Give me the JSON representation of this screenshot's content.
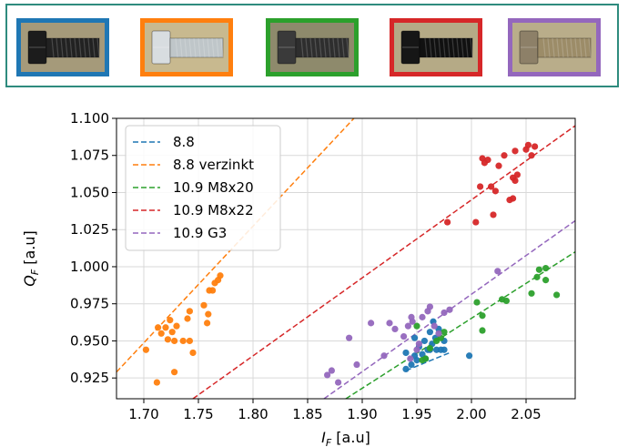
{
  "bolt_photos": [
    {
      "frame_color": "#1f77b4",
      "bolt_color": "#1c1c1c",
      "thread_color": "#222222",
      "bg_color": "#a59a7a"
    },
    {
      "frame_color": "#ff7f0e",
      "bolt_color": "#d8dde0",
      "thread_color": "#bfc6c9",
      "bg_color": "#c8b98f"
    },
    {
      "frame_color": "#2ca02c",
      "bolt_color": "#3a3a3a",
      "thread_color": "#2e2e2e",
      "bg_color": "#8e8a6c"
    },
    {
      "frame_color": "#d62728",
      "bolt_color": "#161616",
      "thread_color": "#111111",
      "bg_color": "#b5aa86"
    },
    {
      "frame_color": "#9467bd",
      "bolt_color": "#8d8068",
      "thread_color": "#9c8c68",
      "bg_color": "#b9ad8a"
    }
  ],
  "chart_data": {
    "type": "scatter",
    "xlabel": "I_F [a.u]",
    "xlabel_main": "I",
    "xlabel_sub": "F",
    "xlabel_unit": " [a.u]",
    "ylabel": "Q_F [a.u]",
    "ylabel_main": "Q",
    "ylabel_sub": "F",
    "ylabel_unit": " [a.u]",
    "xlim": [
      1.675,
      2.095
    ],
    "ylim": [
      0.911,
      1.1
    ],
    "x_ticks": [
      "1.70",
      "1.75",
      "1.80",
      "1.85",
      "1.90",
      "1.95",
      "2.00",
      "2.05"
    ],
    "x_tick_values": [
      1.7,
      1.75,
      1.8,
      1.85,
      1.9,
      1.95,
      2.0,
      2.05
    ],
    "y_ticks": [
      "0.925",
      "0.950",
      "0.975",
      "1.000",
      "1.025",
      "1.050",
      "1.075",
      "1.100"
    ],
    "y_tick_values": [
      0.925,
      0.95,
      0.975,
      1.0,
      1.025,
      1.05,
      1.075,
      1.1
    ],
    "grid": true,
    "legend_position": "top-left",
    "series": [
      {
        "name": "8.8",
        "color": "#1f77b4",
        "fit_line": [
          [
            1.94,
            0.93
          ],
          [
            1.98,
            0.942
          ]
        ],
        "points": [
          [
            1.94,
            0.931
          ],
          [
            1.94,
            0.942
          ],
          [
            1.945,
            0.934
          ],
          [
            1.948,
            0.952
          ],
          [
            1.95,
            0.937
          ],
          [
            1.952,
            0.946
          ],
          [
            1.955,
            0.941
          ],
          [
            1.957,
            0.95
          ],
          [
            1.96,
            0.944
          ],
          [
            1.962,
            0.956
          ],
          [
            1.964,
            0.948
          ],
          [
            1.965,
            0.963
          ],
          [
            1.967,
            0.952
          ],
          [
            1.968,
            0.944
          ],
          [
            1.97,
            0.958
          ],
          [
            1.972,
            0.944
          ],
          [
            1.975,
            0.95
          ],
          [
            1.958,
            0.938
          ],
          [
            1.948,
            0.94
          ],
          [
            1.998,
            0.94
          ],
          [
            1.962,
            0.944
          ],
          [
            1.975,
            0.944
          ]
        ]
      },
      {
        "name": "8.8 verzinkt",
        "color": "#ff7f0e",
        "fit_line": [
          [
            1.675,
            0.929
          ],
          [
            1.9,
            1.106
          ]
        ],
        "points": [
          [
            1.702,
            0.944
          ],
          [
            1.712,
            0.922
          ],
          [
            1.713,
            0.959
          ],
          [
            1.716,
            0.955
          ],
          [
            1.72,
            0.959
          ],
          [
            1.722,
            0.951
          ],
          [
            1.724,
            0.964
          ],
          [
            1.726,
            0.956
          ],
          [
            1.728,
            0.95
          ],
          [
            1.728,
            0.929
          ],
          [
            1.736,
            0.95
          ],
          [
            1.74,
            0.965
          ],
          [
            1.742,
            0.97
          ],
          [
            1.742,
            0.95
          ],
          [
            1.745,
            0.942
          ],
          [
            1.755,
            0.974
          ],
          [
            1.758,
            0.962
          ],
          [
            1.759,
            0.968
          ],
          [
            1.76,
            0.984
          ],
          [
            1.763,
            0.984
          ],
          [
            1.765,
            0.989
          ],
          [
            1.768,
            0.991
          ],
          [
            1.77,
            0.994
          ],
          [
            1.73,
            0.96
          ]
        ]
      },
      {
        "name": "10.9 M8x20",
        "color": "#2ca02c",
        "fit_line": [
          [
            1.885,
            0.911
          ],
          [
            2.095,
            1.01
          ]
        ],
        "points": [
          [
            1.955,
            0.937
          ],
          [
            1.958,
            0.938
          ],
          [
            1.962,
            0.945
          ],
          [
            1.968,
            0.95
          ],
          [
            1.972,
            0.952
          ],
          [
            1.975,
            0.956
          ],
          [
            2.005,
            0.976
          ],
          [
            2.01,
            0.957
          ],
          [
            2.01,
            0.967
          ],
          [
            2.028,
            0.978
          ],
          [
            2.032,
            0.977
          ],
          [
            2.055,
            0.982
          ],
          [
            2.06,
            0.993
          ],
          [
            2.062,
            0.998
          ],
          [
            2.068,
            0.999
          ],
          [
            2.068,
            0.991
          ],
          [
            2.078,
            0.981
          ],
          [
            1.95,
            0.96
          ]
        ]
      },
      {
        "name": "10.9 M8x22",
        "color": "#d62728",
        "fit_line": [
          [
            1.745,
            0.911
          ],
          [
            2.095,
            1.095
          ]
        ],
        "points": [
          [
            1.978,
            1.03
          ],
          [
            2.004,
            1.03
          ],
          [
            2.008,
            1.054
          ],
          [
            2.01,
            1.073
          ],
          [
            2.012,
            1.07
          ],
          [
            2.015,
            1.072
          ],
          [
            2.018,
            1.054
          ],
          [
            2.02,
            1.035
          ],
          [
            2.022,
            1.051
          ],
          [
            2.025,
            1.068
          ],
          [
            2.03,
            1.075
          ],
          [
            2.035,
            1.045
          ],
          [
            2.038,
            1.06
          ],
          [
            2.04,
            1.078
          ],
          [
            2.04,
            1.058
          ],
          [
            2.042,
            1.062
          ],
          [
            2.05,
            1.079
          ],
          [
            2.052,
            1.082
          ],
          [
            2.055,
            1.075
          ],
          [
            2.058,
            1.081
          ],
          [
            2.038,
            1.046
          ]
        ]
      },
      {
        "name": "10.9 G3",
        "color": "#9467bd",
        "fit_line": [
          [
            1.865,
            0.911
          ],
          [
            2.095,
            1.031
          ]
        ],
        "points": [
          [
            1.868,
            0.927
          ],
          [
            1.872,
            0.93
          ],
          [
            1.878,
            0.922
          ],
          [
            1.888,
            0.952
          ],
          [
            1.895,
            0.934
          ],
          [
            1.908,
            0.962
          ],
          [
            1.92,
            0.94
          ],
          [
            1.925,
            0.962
          ],
          [
            1.93,
            0.958
          ],
          [
            1.938,
            0.953
          ],
          [
            1.942,
            0.96
          ],
          [
            1.945,
            0.966
          ],
          [
            1.946,
            0.963
          ],
          [
            1.95,
            0.944
          ],
          [
            1.955,
            0.966
          ],
          [
            1.96,
            0.97
          ],
          [
            1.962,
            0.973
          ],
          [
            1.966,
            0.96
          ],
          [
            1.97,
            0.955
          ],
          [
            1.975,
            0.969
          ],
          [
            1.98,
            0.971
          ],
          [
            2.024,
            0.997
          ],
          [
            1.952,
            0.948
          ],
          [
            1.944,
            0.938
          ]
        ]
      }
    ]
  }
}
